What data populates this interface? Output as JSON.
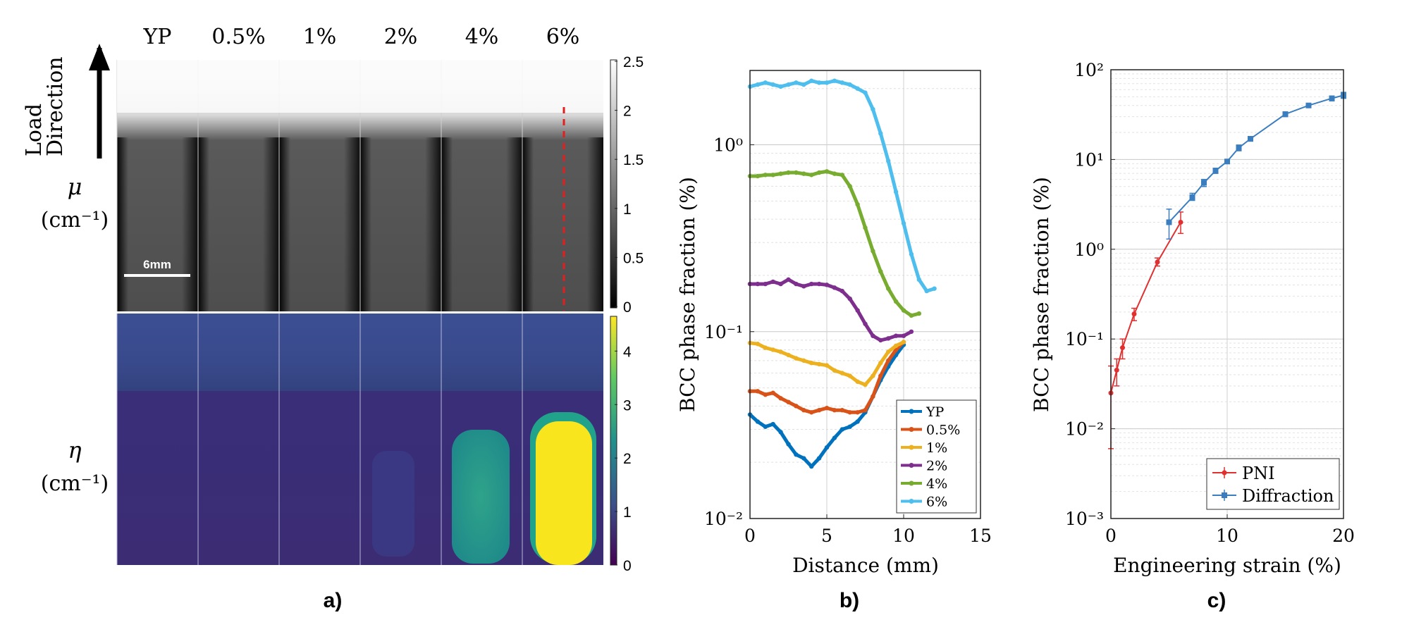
{
  "panel_a": {
    "label": "a)",
    "column_labels": [
      "YP",
      "0.5%",
      "1%",
      "2%",
      "4%",
      "6%"
    ],
    "load_direction": [
      "Load",
      "Direction"
    ],
    "mu_label": {
      "symbol": "μ",
      "unit": "(cm⁻¹)"
    },
    "eta_label": {
      "symbol": "η",
      "unit": "(cm⁻¹)"
    },
    "scale_bar": "6mm",
    "mu_colorbar_ticks": [
      "2.5",
      "2",
      "1.5",
      "1",
      "0.5",
      "0"
    ],
    "eta_colorbar_ticks": [
      "4",
      "3",
      "2",
      "1",
      "0"
    ]
  },
  "panel_b": {
    "label": "b)",
    "legend": [
      "YP",
      "0.5%",
      "1%",
      "2%",
      "4%",
      "6%"
    ],
    "y_ticks": [
      "10⁰",
      "10⁻¹",
      "10⁻²"
    ],
    "x_ticks": [
      "0",
      "5",
      "10",
      "15"
    ]
  },
  "panel_c": {
    "label": "c)",
    "legend": [
      "PNI",
      "Diffraction"
    ],
    "y_ticks": [
      "10²",
      "10¹",
      "10⁰",
      "10⁻¹",
      "10⁻²",
      "10⁻³"
    ],
    "x_ticks": [
      "0",
      "10",
      "20"
    ]
  },
  "colors": {
    "YP": "#0072bd",
    "0.5%": "#d95319",
    "1%": "#edb120",
    "2%": "#7e2f8e",
    "4%": "#77ac30",
    "6%": "#4dbeee",
    "PNI": "#e03030",
    "Diffraction": "#3b7ec0",
    "red_dash": "#e02020"
  },
  "chart_data": [
    {
      "type": "line",
      "title": "",
      "xlabel": "Distance (mm)",
      "ylabel": "BCC phase fraction (%)",
      "xlim": [
        0,
        15
      ],
      "ylim": [
        0.01,
        2.5
      ],
      "yscale": "log",
      "grid": true,
      "legend_position": "bottom-right",
      "series": [
        {
          "name": "YP",
          "x": [
            0,
            0.5,
            1,
            1.5,
            2,
            2.5,
            3,
            3.5,
            4,
            4.5,
            5,
            5.5,
            6,
            6.5,
            7,
            7.5,
            8,
            8.5,
            9,
            9.5,
            10
          ],
          "values": [
            0.036,
            0.033,
            0.031,
            0.032,
            0.029,
            0.025,
            0.022,
            0.021,
            0.019,
            0.021,
            0.024,
            0.027,
            0.03,
            0.031,
            0.033,
            0.037,
            0.045,
            0.055,
            0.065,
            0.075,
            0.085
          ]
        },
        {
          "name": "0.5%",
          "x": [
            0,
            0.5,
            1,
            1.5,
            2,
            2.5,
            3,
            3.5,
            4,
            4.5,
            5,
            5.5,
            6,
            6.5,
            7,
            7.5,
            8,
            8.5,
            9,
            9.5,
            10
          ],
          "values": [
            0.048,
            0.048,
            0.046,
            0.047,
            0.044,
            0.042,
            0.04,
            0.038,
            0.037,
            0.038,
            0.039,
            0.038,
            0.038,
            0.037,
            0.037,
            0.038,
            0.045,
            0.058,
            0.07,
            0.08,
            0.088
          ]
        },
        {
          "name": "1%",
          "x": [
            0,
            0.5,
            1,
            1.5,
            2,
            2.5,
            3,
            3.5,
            4,
            4.5,
            5,
            5.5,
            6,
            6.5,
            7,
            7.5,
            8,
            8.5,
            9,
            9.5,
            10
          ],
          "values": [
            0.087,
            0.086,
            0.082,
            0.08,
            0.078,
            0.075,
            0.072,
            0.07,
            0.068,
            0.067,
            0.066,
            0.062,
            0.06,
            0.058,
            0.054,
            0.052,
            0.058,
            0.068,
            0.078,
            0.084,
            0.088
          ]
        },
        {
          "name": "2%",
          "x": [
            0,
            0.5,
            1,
            1.5,
            2,
            2.5,
            3,
            3.5,
            4,
            4.5,
            5,
            5.5,
            6,
            6.5,
            7,
            7.5,
            8,
            8.5,
            9,
            9.5,
            10,
            10.5
          ],
          "values": [
            0.18,
            0.18,
            0.18,
            0.185,
            0.18,
            0.19,
            0.18,
            0.175,
            0.18,
            0.18,
            0.178,
            0.172,
            0.165,
            0.15,
            0.13,
            0.11,
            0.095,
            0.09,
            0.092,
            0.095,
            0.095,
            0.1
          ]
        },
        {
          "name": "4%",
          "x": [
            0,
            0.5,
            1,
            1.5,
            2,
            2.5,
            3,
            3.5,
            4,
            4.5,
            5,
            5.5,
            6,
            6.5,
            7,
            7.5,
            8,
            8.5,
            9,
            9.5,
            10,
            10.5,
            11
          ],
          "values": [
            0.68,
            0.68,
            0.69,
            0.69,
            0.7,
            0.71,
            0.71,
            0.7,
            0.69,
            0.71,
            0.72,
            0.7,
            0.69,
            0.6,
            0.48,
            0.36,
            0.27,
            0.21,
            0.17,
            0.145,
            0.13,
            0.122,
            0.125
          ]
        },
        {
          "name": "6%",
          "x": [
            0,
            0.5,
            1,
            1.5,
            2,
            2.5,
            3,
            3.5,
            4,
            4.5,
            5,
            5.5,
            6,
            6.5,
            7,
            7.5,
            8,
            8.5,
            9,
            9.5,
            10,
            10.5,
            11,
            11.5,
            12
          ],
          "values": [
            2.05,
            2.1,
            2.15,
            2.1,
            2.05,
            2.1,
            2.15,
            2.1,
            2.2,
            2.15,
            2.15,
            2.2,
            2.15,
            2.1,
            2.0,
            1.9,
            1.55,
            1.15,
            0.82,
            0.56,
            0.38,
            0.26,
            0.19,
            0.165,
            0.17
          ]
        }
      ]
    },
    {
      "type": "line",
      "title": "",
      "xlabel": "Engineering strain (%)",
      "ylabel": "BCC phase fraction (%)",
      "xlim": [
        0,
        20
      ],
      "ylim": [
        0.001,
        100
      ],
      "yscale": "log",
      "grid": true,
      "legend_position": "bottom-right",
      "series": [
        {
          "name": "PNI",
          "x": [
            0,
            0.5,
            1,
            2,
            4,
            6
          ],
          "values": [
            0.025,
            0.045,
            0.08,
            0.19,
            0.72,
            2.0
          ],
          "err_low": [
            0.006,
            0.03,
            0.06,
            0.16,
            0.65,
            1.5
          ],
          "err_high": [
            0.05,
            0.06,
            0.1,
            0.22,
            0.8,
            2.6
          ]
        },
        {
          "name": "Diffraction",
          "x": [
            5,
            7,
            8,
            9,
            10,
            11,
            12,
            15,
            17,
            19,
            20
          ],
          "values": [
            2.0,
            3.8,
            5.5,
            7.5,
            9.5,
            13.5,
            17,
            32,
            40,
            48,
            52
          ],
          "err_low": [
            1.3,
            3.5,
            5.0,
            7.0,
            9.0,
            12.5,
            16,
            30,
            38,
            45,
            48
          ],
          "err_high": [
            2.8,
            4.2,
            6.0,
            8.0,
            10.0,
            14.5,
            18,
            34,
            42,
            51,
            56
          ]
        }
      ]
    }
  ]
}
